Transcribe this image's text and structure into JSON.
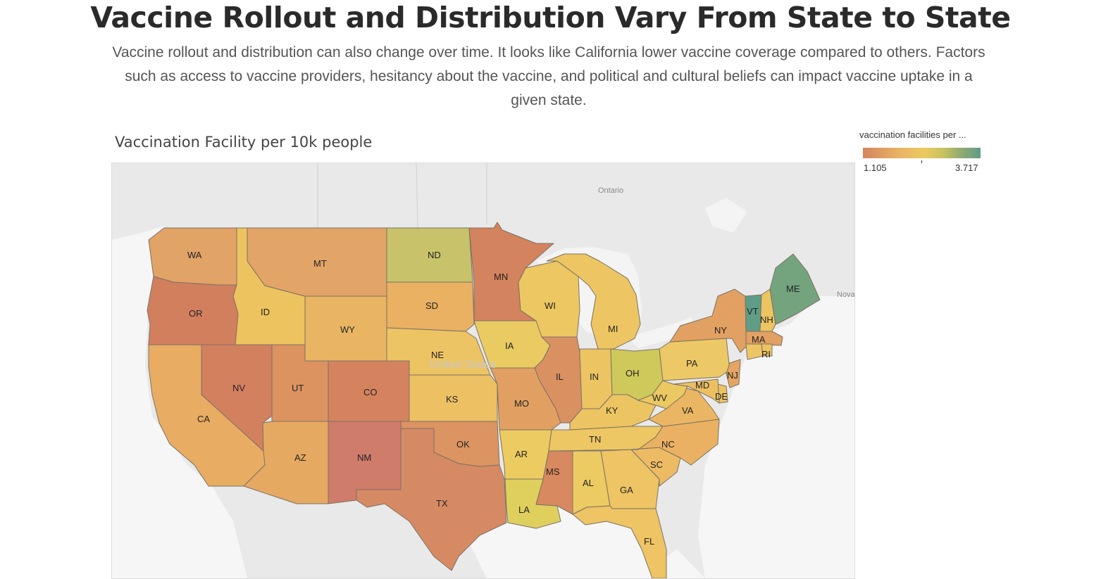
{
  "page": {
    "title": "Vaccine Rollout and Distribution Vary From State to State",
    "description": "Vaccine rollout and distribution can also change over time. It looks like California lower vaccine coverage compared to others. Factors such as access to vaccine providers, hesitancy about the vaccine, and political and cultural beliefs can impact vaccine uptake in a given state."
  },
  "map": {
    "title": "Vaccination Facility per 10k people",
    "basemap_labels": {
      "ontario": "Ontario",
      "united_states": "United States",
      "nova": "Nova"
    },
    "legend": {
      "title": "vaccination facilities per ...",
      "min": "1.105",
      "max": "3.717",
      "colors": [
        "#d4855d",
        "#e9b266",
        "#ecc961",
        "#c8c35f",
        "#8eaa74",
        "#5f9d86"
      ]
    },
    "states": {
      "WA": {
        "label": "WA",
        "color": "#e2a366"
      },
      "OR": {
        "label": "OR",
        "color": "#d27f5e"
      },
      "CA": {
        "label": "CA",
        "color": "#e8ac62"
      },
      "NV": {
        "label": "NV",
        "color": "#d3805f"
      },
      "ID": {
        "label": "ID",
        "color": "#ecc35f"
      },
      "MT": {
        "label": "MT",
        "color": "#e3a467"
      },
      "WY": {
        "label": "WY",
        "color": "#e9b563"
      },
      "UT": {
        "label": "UT",
        "color": "#dc9360"
      },
      "AZ": {
        "label": "AZ",
        "color": "#e6a962"
      },
      "CO": {
        "label": "CO",
        "color": "#d5835f"
      },
      "NM": {
        "label": "NM",
        "color": "#cf7c6a"
      },
      "ND": {
        "label": "ND",
        "color": "#c8c36a"
      },
      "SD": {
        "label": "SD",
        "color": "#e9b161"
      },
      "NE": {
        "label": "NE",
        "color": "#edc464"
      },
      "KS": {
        "label": "KS",
        "color": "#edc064"
      },
      "OK": {
        "label": "OK",
        "color": "#dc9462"
      },
      "TX": {
        "label": "TX",
        "color": "#d68a64"
      },
      "MN": {
        "label": "MN",
        "color": "#d3835e"
      },
      "IA": {
        "label": "IA",
        "color": "#e9cb62"
      },
      "MO": {
        "label": "MO",
        "color": "#e1a062"
      },
      "AR": {
        "label": "AR",
        "color": "#eccb61"
      },
      "LA": {
        "label": "LA",
        "color": "#dfd05d"
      },
      "WI": {
        "label": "WI",
        "color": "#edc761"
      },
      "IL": {
        "label": "IL",
        "color": "#da9162"
      },
      "MI": {
        "label": "MI",
        "color": "#edc663"
      },
      "IN": {
        "label": "IN",
        "color": "#edc462"
      },
      "OH": {
        "label": "OH",
        "color": "#cfc95b"
      },
      "KY": {
        "label": "KY",
        "color": "#ecc562"
      },
      "TN": {
        "label": "TN",
        "color": "#edc763"
      },
      "MS": {
        "label": "MS",
        "color": "#d8895f"
      },
      "AL": {
        "label": "AL",
        "color": "#eccb62"
      },
      "GA": {
        "label": "GA",
        "color": "#eec464"
      },
      "FL": {
        "label": "FL",
        "color": "#eec464"
      },
      "SC": {
        "label": "SC",
        "color": "#ecbb64"
      },
      "NC": {
        "label": "NC",
        "color": "#ebb162"
      },
      "VA": {
        "label": "VA",
        "color": "#ebb663"
      },
      "WV": {
        "label": "WV",
        "color": "#ecc862"
      },
      "PA": {
        "label": "PA",
        "color": "#ecc966"
      },
      "NY": {
        "label": "NY",
        "color": "#e2a162"
      },
      "VT": {
        "label": "VT",
        "color": "#5f9d86"
      },
      "NH": {
        "label": "NH",
        "color": "#ecc562"
      },
      "ME": {
        "label": "ME",
        "color": "#73a47e"
      },
      "MA": {
        "label": "MA",
        "color": "#e2a062"
      },
      "RI": {
        "label": "RI",
        "color": "#ecc262"
      },
      "CT": {
        "label": "",
        "color": "#eec564"
      },
      "NJ": {
        "label": "NJ",
        "color": "#e4a462"
      },
      "DE": {
        "label": "DE",
        "color": "#ecc262"
      },
      "MD": {
        "label": "MD",
        "color": "#ecc062"
      }
    }
  }
}
